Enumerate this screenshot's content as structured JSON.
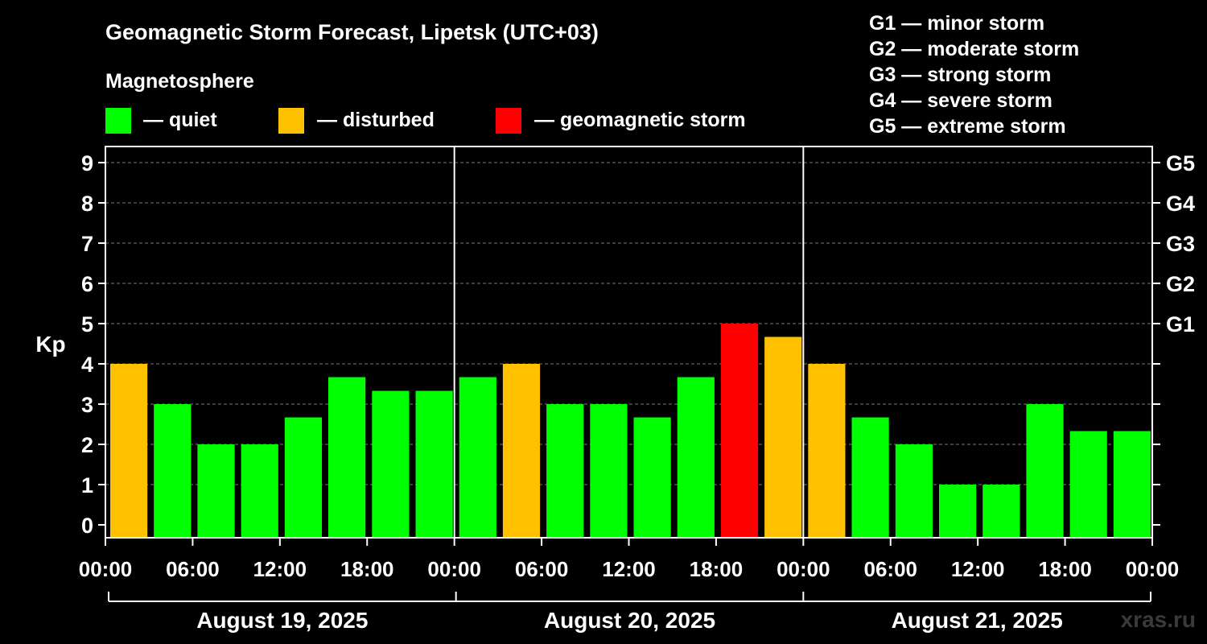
{
  "header": {
    "title": "Geomagnetic Storm Forecast, Lipetsk (UTC+03)",
    "subtitle": "Magnetosphere"
  },
  "legend": {
    "items": [
      {
        "label": "— quiet",
        "color": "#00ff00"
      },
      {
        "label": "— disturbed",
        "color": "#ffc000"
      },
      {
        "label": "— geomagnetic storm",
        "color": "#ff0000"
      }
    ],
    "g_scale": [
      "G1 — minor storm",
      "G2 — moderate storm",
      "G3 — strong storm",
      "G4 — severe storm",
      "G5 — extreme storm"
    ]
  },
  "watermark": "xras.ru",
  "chart_data": {
    "type": "bar",
    "title": "Geomagnetic Storm Forecast, Lipetsk (UTC+03)",
    "ylabel": "Kp",
    "ylim": [
      0,
      9
    ],
    "yticks": [
      "0",
      "1",
      "2",
      "3",
      "4",
      "5",
      "6",
      "7",
      "8",
      "9"
    ],
    "right_axis": {
      "ticks": [
        {
          "value": 5,
          "label": "G1"
        },
        {
          "value": 6,
          "label": "G2"
        },
        {
          "value": 7,
          "label": "G3"
        },
        {
          "value": 8,
          "label": "G4"
        },
        {
          "value": 9,
          "label": "G5"
        }
      ]
    },
    "xticks": [
      "00:00",
      "06:00",
      "12:00",
      "18:00",
      "00:00",
      "06:00",
      "12:00",
      "18:00",
      "00:00",
      "06:00",
      "12:00",
      "18:00",
      "00:00"
    ],
    "days": [
      "August 19, 2025",
      "August 20, 2025",
      "August 21, 2025"
    ],
    "grid": true,
    "values": [
      4,
      3,
      2,
      2,
      2.67,
      3.67,
      3.33,
      3.33,
      3.67,
      4,
      3,
      3,
      2.67,
      3.67,
      5,
      4.67,
      4,
      2.67,
      2,
      1,
      1,
      3,
      2.33,
      2.33
    ],
    "levels": [
      "disturbed",
      "quiet",
      "quiet",
      "quiet",
      "quiet",
      "quiet",
      "quiet",
      "quiet",
      "quiet",
      "disturbed",
      "quiet",
      "quiet",
      "quiet",
      "quiet",
      "storm",
      "disturbed",
      "disturbed",
      "quiet",
      "quiet",
      "quiet",
      "quiet",
      "quiet",
      "quiet",
      "quiet"
    ],
    "colors": {
      "quiet": "#00ff00",
      "disturbed": "#ffc000",
      "storm": "#ff0000"
    }
  }
}
